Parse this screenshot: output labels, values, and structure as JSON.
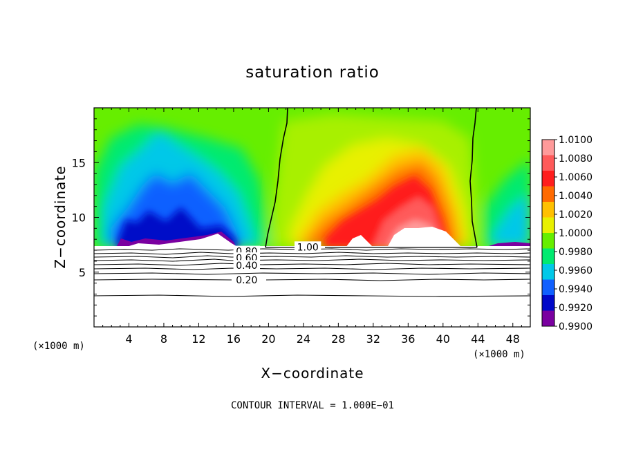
{
  "chart_data": {
    "type": "heatmap",
    "title": "saturation ratio",
    "xlabel": "X−coordinate",
    "ylabel": "Z−coordinate",
    "x_unit_left": "(×1000 m)",
    "x_unit_right": "(×1000 m)",
    "xlim": [
      0,
      50
    ],
    "ylim": [
      0,
      20
    ],
    "x_ticks": [
      4,
      8,
      12,
      16,
      20,
      24,
      28,
      32,
      36,
      40,
      44,
      48
    ],
    "y_ticks": [
      5,
      10,
      15
    ],
    "colorbar": {
      "labels": [
        "1.0100",
        "1.0080",
        "1.0060",
        "1.0040",
        "1.0020",
        "1.0000",
        "0.9980",
        "0.9960",
        "0.9940",
        "0.9920",
        "0.9900"
      ],
      "colors": [
        "#ff9a9a",
        "#ff5a5a",
        "#ff1e1e",
        "#ff6a00",
        "#ffc000",
        "#e8f000",
        "#66ee00",
        "#00ea70",
        "#00c8e8",
        "#1060ff",
        "#0008c8",
        "#7a00a0"
      ]
    },
    "contour_labels": [
      {
        "text": "0.80",
        "x": 17.5,
        "y": 6.9
      },
      {
        "text": "0.60",
        "x": 17.5,
        "y": 6.3
      },
      {
        "text": "0.40",
        "x": 17.5,
        "y": 5.6
      },
      {
        "text": "0.20",
        "x": 17.5,
        "y": 4.3
      },
      {
        "text": "1.00",
        "x": 24.5,
        "y": 7.3
      }
    ],
    "footer": "CONTOUR INTERVAL = 1.000E−01"
  }
}
